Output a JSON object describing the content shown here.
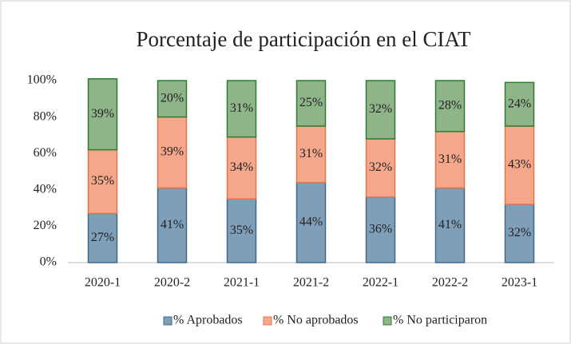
{
  "chart_data": {
    "type": "stacked_bar",
    "title": "Porcentaje de participación en el CIAT",
    "categories": [
      "2020-1",
      "2020-2",
      "2021-1",
      "2021-2",
      "2022-1",
      "2022-2",
      "2023-1"
    ],
    "series": [
      {
        "name": "% Aprobados",
        "color": "#7f9fb8",
        "border": "#3f6a8c",
        "values": [
          27,
          41,
          35,
          44,
          36,
          41,
          32
        ],
        "value_labels": [
          "27%",
          "41%",
          "35%",
          "44%",
          "36%",
          "41%",
          "32%"
        ]
      },
      {
        "name": "% No aprobados",
        "color": "#f4a78a",
        "border": "#e8744c",
        "values": [
          35,
          39,
          34,
          31,
          32,
          31,
          43
        ],
        "value_labels": [
          "35%",
          "39%",
          "34%",
          "31%",
          "32%",
          "31%",
          "43%"
        ]
      },
      {
        "name": "% No participaron",
        "color": "#8fb48a",
        "border": "#2e7d32",
        "values": [
          39,
          20,
          31,
          25,
          32,
          28,
          24
        ],
        "value_labels": [
          "39%",
          "20%",
          "31%",
          "25%",
          "32%",
          "28%",
          "24%"
        ]
      }
    ],
    "ylim": [
      0,
      100
    ],
    "yticks": [
      {
        "value": 0,
        "label": "0%"
      },
      {
        "value": 20,
        "label": "20%"
      },
      {
        "value": 40,
        "label": "40%"
      },
      {
        "value": 60,
        "label": "60%"
      },
      {
        "value": 80,
        "label": "80%"
      },
      {
        "value": 100,
        "label": "100%"
      }
    ],
    "legend": "bottom"
  }
}
